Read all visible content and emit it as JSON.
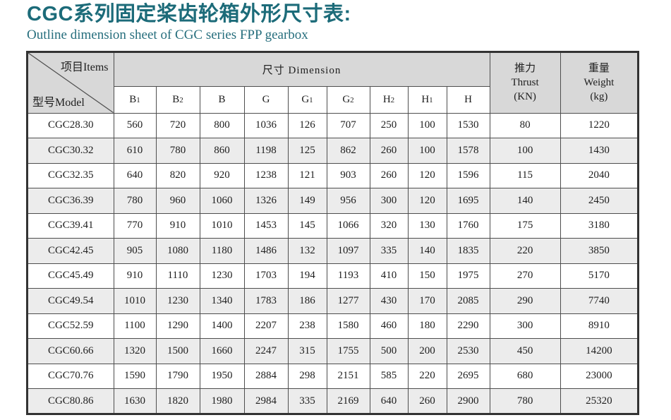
{
  "title": "CGC系列固定桨齿轮箱外形尺寸表:",
  "subtitle": "Outline dimension sheet of CGC series FPP gearbox",
  "colors": {
    "title_teal": "#1c6b79",
    "header_bg": "#d8d8d8",
    "alt_row_bg": "#ececec",
    "border": "#4e4e4e"
  },
  "table": {
    "corner": {
      "top_right": "项目Items",
      "bottom_left": "型号Model"
    },
    "dimension_header": "尺寸 Dimension",
    "thrust_header": {
      "l1": "推力",
      "l2": "Thrust",
      "l3": "(KN)"
    },
    "weight_header": {
      "l1": "重量",
      "l2": "Weight",
      "l3": "(kg)"
    },
    "sub_headers": [
      {
        "base": "B",
        "sub": "1"
      },
      {
        "base": "B",
        "sub": "2"
      },
      {
        "base": "B",
        "sub": ""
      },
      {
        "base": "G",
        "sub": ""
      },
      {
        "base": "G",
        "sub": "1"
      },
      {
        "base": "G",
        "sub": "2"
      },
      {
        "base": "H",
        "sub": "2"
      },
      {
        "base": "H",
        "sub": "1"
      },
      {
        "base": "H",
        "sub": ""
      }
    ],
    "rows": [
      {
        "model": "CGC28.30",
        "values": [
          560,
          720,
          800,
          1036,
          126,
          707,
          250,
          100,
          1530,
          80,
          1220
        ]
      },
      {
        "model": "CGC30.32",
        "values": [
          610,
          780,
          860,
          1198,
          125,
          862,
          260,
          100,
          1578,
          100,
          1430
        ]
      },
      {
        "model": "CGC32.35",
        "values": [
          640,
          820,
          920,
          1238,
          121,
          903,
          260,
          120,
          1596,
          115,
          2040
        ]
      },
      {
        "model": "CGC36.39",
        "values": [
          780,
          960,
          1060,
          1326,
          149,
          956,
          300,
          120,
          1695,
          140,
          2450
        ]
      },
      {
        "model": "CGC39.41",
        "values": [
          770,
          910,
          1010,
          1453,
          145,
          1066,
          320,
          130,
          1760,
          175,
          3180
        ]
      },
      {
        "model": "CGC42.45",
        "values": [
          905,
          1080,
          1180,
          1486,
          132,
          1097,
          335,
          140,
          1835,
          220,
          3850
        ]
      },
      {
        "model": "CGC45.49",
        "values": [
          910,
          1110,
          1230,
          1703,
          194,
          1193,
          410,
          150,
          1975,
          270,
          5170
        ]
      },
      {
        "model": "CGC49.54",
        "values": [
          1010,
          1230,
          1340,
          1783,
          186,
          1277,
          430,
          170,
          2085,
          290,
          7740
        ]
      },
      {
        "model": "CGC52.59",
        "values": [
          1100,
          1290,
          1400,
          2207,
          238,
          1580,
          460,
          180,
          2290,
          300,
          8910
        ]
      },
      {
        "model": "CGC60.66",
        "values": [
          1320,
          1500,
          1660,
          2247,
          315,
          1755,
          500,
          200,
          2530,
          450,
          14200
        ]
      },
      {
        "model": "CGC70.76",
        "values": [
          1590,
          1790,
          1950,
          2884,
          298,
          2151,
          585,
          220,
          2695,
          680,
          23000
        ]
      },
      {
        "model": "CGC80.86",
        "values": [
          1630,
          1820,
          1980,
          2984,
          335,
          2169,
          640,
          260,
          2900,
          780,
          25320
        ]
      }
    ]
  }
}
